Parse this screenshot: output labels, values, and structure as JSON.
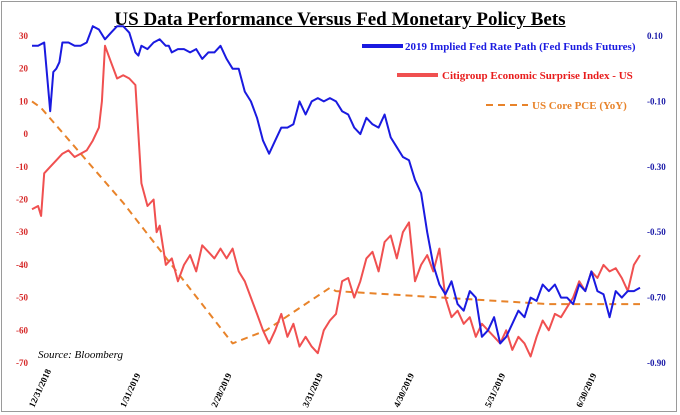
{
  "chart_data": {
    "type": "line",
    "title": "US Data Performance Versus Fed Monetary Policy Bets",
    "source": "Source: Bloomberg",
    "left_axis": {
      "ticks": [
        "30",
        "20",
        "10",
        "0",
        "-10",
        "-20",
        "-30",
        "-40",
        "-50",
        "-60",
        "-70"
      ],
      "range": [
        -70,
        30
      ]
    },
    "right_axis": {
      "ticks": [
        "0.10",
        "-0.10",
        "-0.30",
        "-0.50",
        "-0.70",
        "-0.90"
      ],
      "range": [
        -0.9,
        0.1
      ]
    },
    "x_tick_labels": [
      "12/31/2018",
      "1/31/2019",
      "2/28/2019",
      "3/31/2019",
      "4/30/2019",
      "5/31/2019",
      "6/30/2019"
    ],
    "colors": {
      "fed": "#1a1ae0",
      "citi": "#f05050",
      "pce": "#e8832a",
      "left_axis_text": "#d62828",
      "right_axis_text": "#1a1aa8"
    },
    "series": [
      {
        "key": "fed",
        "name": "2019 Implied Fed Rate Path (Fed Funds Futures)",
        "axis": "right",
        "style": "solid",
        "x": [
          0,
          2,
          4,
          6,
          7,
          8,
          9,
          10,
          12,
          14,
          15,
          16,
          18,
          20,
          22,
          24,
          26,
          28,
          30,
          32,
          34,
          35,
          36,
          38,
          40,
          42,
          44,
          45,
          46,
          48,
          50,
          52,
          54,
          56,
          58,
          60,
          62,
          64,
          66,
          68,
          70,
          72,
          74,
          76,
          78,
          80,
          82,
          84,
          86,
          88,
          90,
          92,
          94,
          96,
          98,
          100,
          102,
          104,
          106,
          108,
          110,
          112,
          114,
          116,
          118,
          120,
          122,
          124,
          126,
          128,
          130,
          132,
          134,
          136,
          138,
          140,
          142,
          144,
          146,
          148,
          150,
          152,
          154,
          156,
          158,
          160,
          162,
          164,
          166,
          168,
          170,
          172,
          174,
          176,
          178,
          180,
          182,
          184,
          186,
          188,
          190,
          192,
          194,
          196,
          198,
          200
        ],
        "values": [
          0.07,
          0.07,
          0.08,
          -0.13,
          -0.01,
          0.0,
          0.02,
          0.08,
          0.08,
          0.07,
          0.07,
          0.07,
          0.08,
          0.13,
          0.12,
          0.09,
          0.11,
          0.13,
          0.13,
          0.11,
          0.05,
          0.04,
          0.07,
          0.06,
          0.08,
          0.09,
          0.07,
          0.07,
          0.05,
          0.06,
          0.06,
          0.05,
          0.06,
          0.03,
          0.05,
          0.05,
          0.07,
          0.03,
          0.0,
          0.0,
          -0.07,
          -0.1,
          -0.15,
          -0.22,
          -0.26,
          -0.22,
          -0.18,
          -0.18,
          -0.17,
          -0.1,
          -0.14,
          -0.1,
          -0.09,
          -0.1,
          -0.09,
          -0.1,
          -0.13,
          -0.14,
          -0.18,
          -0.2,
          -0.15,
          -0.17,
          -0.18,
          -0.14,
          -0.21,
          -0.24,
          -0.27,
          -0.28,
          -0.34,
          -0.38,
          -0.5,
          -0.6,
          -0.66,
          -0.69,
          -0.65,
          -0.72,
          -0.74,
          -0.68,
          -0.7,
          -0.82,
          -0.8,
          -0.76,
          -0.84,
          -0.82,
          -0.78,
          -0.74,
          -0.76,
          -0.7,
          -0.71,
          -0.66,
          -0.68,
          -0.66,
          -0.7,
          -0.7,
          -0.72,
          -0.66,
          -0.68,
          -0.62,
          -0.68,
          -0.69,
          -0.76,
          -0.68,
          -0.7,
          -0.68,
          -0.68,
          -0.67
        ]
      },
      {
        "key": "citi",
        "name": "Citigroup Economic Surprise Index - US",
        "axis": "left",
        "style": "solid",
        "x": [
          0,
          2,
          3,
          4,
          6,
          8,
          10,
          12,
          14,
          16,
          18,
          20,
          22,
          23,
          24,
          26,
          28,
          30,
          32,
          34,
          36,
          38,
          40,
          41,
          42,
          44,
          46,
          48,
          50,
          52,
          54,
          56,
          58,
          60,
          62,
          64,
          66,
          68,
          70,
          72,
          74,
          76,
          78,
          80,
          82,
          84,
          86,
          88,
          90,
          92,
          94,
          96,
          98,
          100,
          102,
          104,
          106,
          108,
          110,
          112,
          114,
          116,
          118,
          120,
          122,
          124,
          126,
          128,
          130,
          132,
          134,
          136,
          138,
          140,
          142,
          144,
          146,
          148,
          150,
          152,
          154,
          156,
          158,
          160,
          162,
          164,
          166,
          168,
          170,
          172,
          174,
          176,
          178,
          180,
          182,
          184,
          186,
          188,
          190,
          192,
          194,
          196,
          198,
          200
        ],
        "values": [
          -23,
          -22,
          -25,
          -12,
          -10,
          -8,
          -6,
          -5,
          -7,
          -6,
          -5,
          -2,
          2,
          10,
          27,
          22,
          17,
          18,
          17,
          15,
          -15,
          -22,
          -20,
          -30,
          -28,
          -40,
          -38,
          -45,
          -40,
          -37,
          -42,
          -34,
          -36,
          -38,
          -35,
          -38,
          -35,
          -42,
          -45,
          -50,
          -55,
          -60,
          -64,
          -60,
          -55,
          -62,
          -58,
          -65,
          -62,
          -65,
          -67,
          -60,
          -57,
          -55,
          -45,
          -44,
          -50,
          -45,
          -38,
          -36,
          -42,
          -33,
          -31,
          -38,
          -30,
          -27,
          -45,
          -40,
          -37,
          -42,
          -35,
          -50,
          -56,
          -54,
          -58,
          -56,
          -62,
          -58,
          -60,
          -62,
          -64,
          -60,
          -66,
          -62,
          -64,
          -68,
          -62,
          -57,
          -60,
          -55,
          -56,
          -53,
          -50,
          -45,
          -48,
          -42,
          -44,
          -40,
          -42,
          -41,
          -44,
          -48,
          -40,
          -37
        ]
      },
      {
        "key": "pce",
        "name": "US Core PCE (YoY)",
        "axis": "right",
        "style": "dashed",
        "x": [
          0,
          3,
          30,
          66,
          77,
          98,
          100,
          170,
          200
        ],
        "values": [
          -0.1,
          -0.12,
          -0.41,
          -0.84,
          -0.8,
          -0.67,
          -0.68,
          -0.72,
          -0.72
        ]
      }
    ]
  }
}
